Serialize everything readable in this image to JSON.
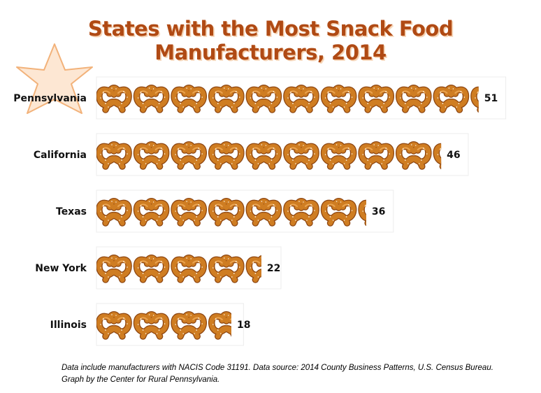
{
  "chart_data": {
    "type": "bar",
    "title": "States with the Most Snack Food Manufacturers, 2014",
    "categories": [
      "Pennsylvania",
      "California",
      "Texas",
      "New York",
      "Illinois"
    ],
    "values": [
      51,
      46,
      36,
      22,
      18
    ],
    "highlight": "Pennsylvania",
    "icon": "pretzel-icon",
    "colors": {
      "title": "#b04a14",
      "star_fill": "#fde7d3",
      "star_stroke": "#f2b27a",
      "pretzel": "#c8761f",
      "pretzel_dark": "#8d4510",
      "salt": "#fff7ea"
    }
  },
  "footnote": {
    "line1": "Data include manufacturers with NACIS Code 31191. Data source: 2014 County Business Patterns, U.S. Census Bureau.",
    "line2": "Graph by the Center for Rural Pennsylvania."
  }
}
